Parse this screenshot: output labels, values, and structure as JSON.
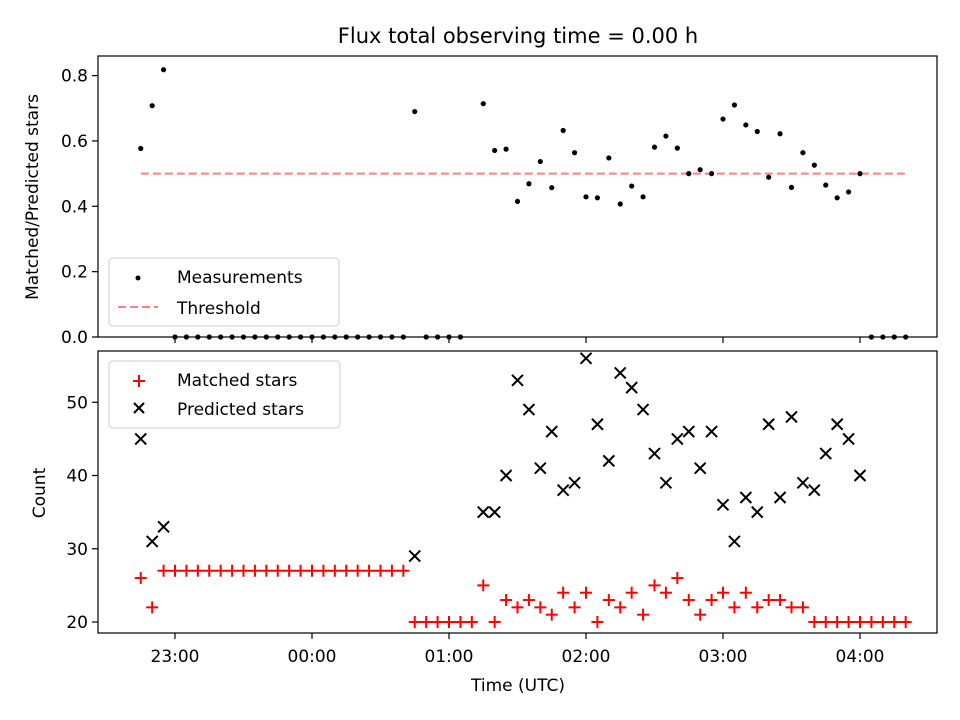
{
  "title": "Flux total observing time = 0.00 h",
  "chart_data": [
    {
      "type": "scatter",
      "ylabel": "Matched/Predicted stars",
      "xlabel": "",
      "ylim": [
        0,
        0.86
      ],
      "x_tick_labels": [
        "23:00",
        "00:00",
        "01:00",
        "02:00",
        "03:00",
        "04:00"
      ],
      "grid": false,
      "legend_placement": "lower-left",
      "series": [
        {
          "name": "Measurements",
          "marker": "dot",
          "color": "#000000",
          "points": [
            [
              "22:45",
              0.577
            ],
            [
              "22:50",
              0.708
            ],
            [
              "22:55",
              0.818
            ],
            [
              "23:00",
              0
            ],
            [
              "23:05",
              0
            ],
            [
              "23:10",
              0
            ],
            [
              "23:15",
              0
            ],
            [
              "23:20",
              0
            ],
            [
              "23:25",
              0
            ],
            [
              "23:30",
              0
            ],
            [
              "23:35",
              0
            ],
            [
              "23:40",
              0
            ],
            [
              "23:45",
              0
            ],
            [
              "23:50",
              0
            ],
            [
              "23:55",
              0
            ],
            [
              "00:00",
              0
            ],
            [
              "00:05",
              0
            ],
            [
              "00:10",
              0
            ],
            [
              "00:15",
              0
            ],
            [
              "00:20",
              0
            ],
            [
              "00:25",
              0
            ],
            [
              "00:30",
              0
            ],
            [
              "00:35",
              0
            ],
            [
              "00:40",
              0
            ],
            [
              "00:45",
              0.69
            ],
            [
              "00:50",
              0
            ],
            [
              "00:55",
              0
            ],
            [
              "01:00",
              0
            ],
            [
              "01:05",
              0
            ],
            [
              "01:15",
              0.714
            ],
            [
              "01:20",
              0.571
            ],
            [
              "01:25",
              0.575
            ],
            [
              "01:30",
              0.415
            ],
            [
              "01:35",
              0.469
            ],
            [
              "01:40",
              0.537
            ],
            [
              "01:45",
              0.457
            ],
            [
              "01:50",
              0.632
            ],
            [
              "01:55",
              0.564
            ],
            [
              "02:00",
              0.429
            ],
            [
              "02:05",
              0.426
            ],
            [
              "02:10",
              0.548
            ],
            [
              "02:15",
              0.407
            ],
            [
              "02:20",
              0.462
            ],
            [
              "02:25",
              0.429
            ],
            [
              "02:30",
              0.581
            ],
            [
              "02:35",
              0.615
            ],
            [
              "02:40",
              0.578
            ],
            [
              "02:45",
              0.5
            ],
            [
              "02:50",
              0.512
            ],
            [
              "02:55",
              0.5
            ],
            [
              "03:00",
              0.667
            ],
            [
              "03:05",
              0.71
            ],
            [
              "03:10",
              0.649
            ],
            [
              "03:15",
              0.629
            ],
            [
              "03:20",
              0.489
            ],
            [
              "03:25",
              0.622
            ],
            [
              "03:30",
              0.458
            ],
            [
              "03:35",
              0.564
            ],
            [
              "03:40",
              0.526
            ],
            [
              "03:45",
              0.465
            ],
            [
              "03:50",
              0.426
            ],
            [
              "03:55",
              0.444
            ],
            [
              "04:00",
              0.5
            ],
            [
              "04:05",
              0
            ],
            [
              "04:10",
              0
            ],
            [
              "04:15",
              0
            ],
            [
              "04:20",
              0
            ]
          ]
        },
        {
          "name": "Threshold",
          "style": "dashed-line",
          "color": "#ff7f7f",
          "x_range": [
            "22:45",
            "04:20"
          ],
          "value": 0.5
        }
      ]
    },
    {
      "type": "scatter",
      "ylabel": "Count",
      "xlabel": "Time (UTC)",
      "ylim": [
        18.5,
        57
      ],
      "x_tick_labels": [
        "23:00",
        "00:00",
        "01:00",
        "02:00",
        "03:00",
        "04:00"
      ],
      "grid": false,
      "legend_placement": "upper-left",
      "series": [
        {
          "name": "Matched stars",
          "marker": "plus",
          "color": "#ff0000",
          "points": [
            [
              "22:45",
              26
            ],
            [
              "22:50",
              22
            ],
            [
              "22:55",
              27
            ],
            [
              "23:00",
              27
            ],
            [
              "23:05",
              27
            ],
            [
              "23:10",
              27
            ],
            [
              "23:15",
              27
            ],
            [
              "23:20",
              27
            ],
            [
              "23:25",
              27
            ],
            [
              "23:30",
              27
            ],
            [
              "23:35",
              27
            ],
            [
              "23:40",
              27
            ],
            [
              "23:45",
              27
            ],
            [
              "23:50",
              27
            ],
            [
              "23:55",
              27
            ],
            [
              "00:00",
              27
            ],
            [
              "00:05",
              27
            ],
            [
              "00:10",
              27
            ],
            [
              "00:15",
              27
            ],
            [
              "00:20",
              27
            ],
            [
              "00:25",
              27
            ],
            [
              "00:30",
              27
            ],
            [
              "00:35",
              27
            ],
            [
              "00:40",
              27
            ],
            [
              "00:45",
              20
            ],
            [
              "00:50",
              20
            ],
            [
              "00:55",
              20
            ],
            [
              "01:00",
              20
            ],
            [
              "01:05",
              20
            ],
            [
              "01:10",
              20
            ],
            [
              "01:15",
              25
            ],
            [
              "01:20",
              20
            ],
            [
              "01:25",
              23
            ],
            [
              "01:30",
              22
            ],
            [
              "01:35",
              23
            ],
            [
              "01:40",
              22
            ],
            [
              "01:45",
              21
            ],
            [
              "01:50",
              24
            ],
            [
              "01:55",
              22
            ],
            [
              "02:00",
              24
            ],
            [
              "02:05",
              20
            ],
            [
              "02:10",
              23
            ],
            [
              "02:15",
              22
            ],
            [
              "02:20",
              24
            ],
            [
              "02:25",
              21
            ],
            [
              "02:30",
              25
            ],
            [
              "02:35",
              24
            ],
            [
              "02:40",
              26
            ],
            [
              "02:45",
              23
            ],
            [
              "02:50",
              21
            ],
            [
              "02:55",
              23
            ],
            [
              "03:00",
              24
            ],
            [
              "03:05",
              22
            ],
            [
              "03:10",
              24
            ],
            [
              "03:15",
              22
            ],
            [
              "03:20",
              23
            ],
            [
              "03:25",
              23
            ],
            [
              "03:30",
              22
            ],
            [
              "03:35",
              22
            ],
            [
              "03:40",
              20
            ],
            [
              "03:45",
              20
            ],
            [
              "03:50",
              20
            ],
            [
              "03:55",
              20
            ],
            [
              "04:00",
              20
            ],
            [
              "04:05",
              20
            ],
            [
              "04:10",
              20
            ],
            [
              "04:15",
              20
            ],
            [
              "04:20",
              20
            ]
          ]
        },
        {
          "name": "Predicted stars",
          "marker": "x",
          "color": "#000000",
          "points": [
            [
              "22:45",
              45
            ],
            [
              "22:50",
              31
            ],
            [
              "22:55",
              33
            ],
            [
              "00:45",
              29
            ],
            [
              "01:15",
              35
            ],
            [
              "01:20",
              35
            ],
            [
              "01:25",
              40
            ],
            [
              "01:30",
              53
            ],
            [
              "01:35",
              49
            ],
            [
              "01:40",
              41
            ],
            [
              "01:45",
              46
            ],
            [
              "01:50",
              38
            ],
            [
              "01:55",
              39
            ],
            [
              "02:00",
              56
            ],
            [
              "02:05",
              47
            ],
            [
              "02:10",
              42
            ],
            [
              "02:15",
              54
            ],
            [
              "02:20",
              52
            ],
            [
              "02:25",
              49
            ],
            [
              "02:30",
              43
            ],
            [
              "02:35",
              39
            ],
            [
              "02:40",
              45
            ],
            [
              "02:45",
              46
            ],
            [
              "02:50",
              41
            ],
            [
              "02:55",
              46
            ],
            [
              "03:00",
              36
            ],
            [
              "03:05",
              31
            ],
            [
              "03:10",
              37
            ],
            [
              "03:15",
              35
            ],
            [
              "03:20",
              47
            ],
            [
              "03:25",
              37
            ],
            [
              "03:30",
              48
            ],
            [
              "03:35",
              39
            ],
            [
              "03:40",
              38
            ],
            [
              "03:45",
              43
            ],
            [
              "03:50",
              47
            ],
            [
              "03:55",
              45
            ],
            [
              "04:00",
              40
            ]
          ]
        }
      ]
    }
  ]
}
